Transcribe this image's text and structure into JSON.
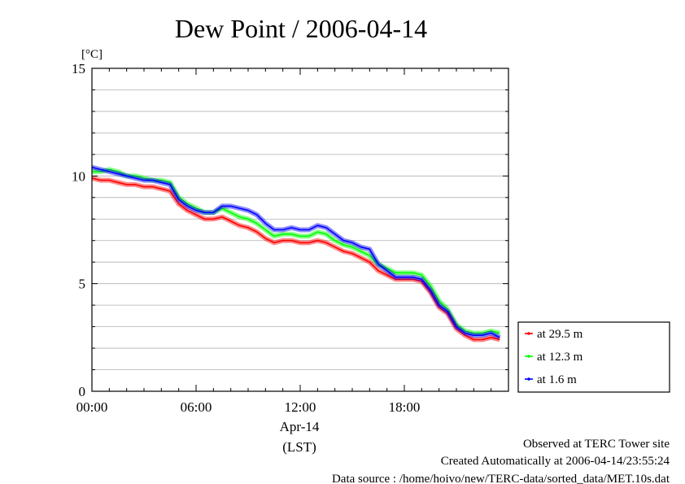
{
  "chart_data": {
    "type": "line",
    "title": "Dew Point / 2006-04-14",
    "ylabel": "[°C]",
    "ylim": [
      0,
      15
    ],
    "yticks": [
      "0",
      "5",
      "10",
      "15"
    ],
    "xlim": [
      0,
      24
    ],
    "xticks": [
      "00:00",
      "06:00",
      "12:00",
      "18:00"
    ],
    "xsublabel": "Apr-14",
    "xunit": "(LST)",
    "grid": true,
    "legend_position": "right-bottom",
    "x": [
      0,
      0.5,
      1,
      1.5,
      2,
      2.5,
      3,
      3.5,
      4,
      4.5,
      5,
      5.5,
      6,
      6.5,
      7,
      7.5,
      8,
      8.5,
      9,
      9.5,
      10,
      10.5,
      11,
      11.5,
      12,
      12.5,
      13,
      13.5,
      14,
      14.5,
      15,
      15.5,
      16,
      16.5,
      17,
      17.5,
      18,
      18.5,
      19,
      19.5,
      20,
      20.5,
      21,
      21.5,
      22,
      22.5,
      23,
      23.5
    ],
    "series": [
      {
        "name": "at 29.5 m",
        "color": "#ff0000",
        "values": [
          9.9,
          9.8,
          9.8,
          9.7,
          9.6,
          9.6,
          9.5,
          9.5,
          9.4,
          9.3,
          8.7,
          8.4,
          8.2,
          8.0,
          8.0,
          8.1,
          7.9,
          7.7,
          7.6,
          7.4,
          7.1,
          6.9,
          7.0,
          7.0,
          6.9,
          6.9,
          7.0,
          6.9,
          6.7,
          6.5,
          6.4,
          6.2,
          6.0,
          5.6,
          5.4,
          5.2,
          5.2,
          5.2,
          5.1,
          4.6,
          3.9,
          3.6,
          2.9,
          2.6,
          2.4,
          2.4,
          2.5,
          2.4
        ]
      },
      {
        "name": "at 12.3 m",
        "color": "#00ff00",
        "values": [
          10.2,
          10.2,
          10.3,
          10.2,
          10.0,
          10.0,
          9.9,
          9.8,
          9.8,
          9.7,
          9.0,
          8.7,
          8.5,
          8.3,
          8.3,
          8.5,
          8.3,
          8.1,
          8.0,
          7.8,
          7.5,
          7.2,
          7.3,
          7.3,
          7.2,
          7.2,
          7.4,
          7.3,
          7.0,
          6.8,
          6.7,
          6.5,
          6.3,
          5.9,
          5.7,
          5.5,
          5.5,
          5.5,
          5.4,
          4.9,
          4.2,
          3.8,
          3.1,
          2.8,
          2.7,
          2.7,
          2.8,
          2.7
        ]
      },
      {
        "name": "at 1.6 m",
        "color": "#0000ff",
        "values": [
          10.4,
          10.3,
          10.2,
          10.1,
          10.0,
          9.9,
          9.8,
          9.8,
          9.7,
          9.6,
          8.9,
          8.6,
          8.4,
          8.3,
          8.3,
          8.6,
          8.6,
          8.5,
          8.4,
          8.2,
          7.8,
          7.5,
          7.5,
          7.6,
          7.5,
          7.5,
          7.7,
          7.6,
          7.3,
          7.0,
          6.9,
          6.7,
          6.6,
          5.9,
          5.6,
          5.3,
          5.3,
          5.3,
          5.2,
          4.7,
          4.0,
          3.7,
          3.0,
          2.7,
          2.6,
          2.6,
          2.7,
          2.5
        ]
      }
    ]
  },
  "footer": {
    "line1": "Observed at TERC Tower site",
    "line2": "Created Automatically at 2006-04-14/23:55:24",
    "line3": "Data source : /home/hoivo/new/TERC-data/sorted_data/MET.10s.dat"
  }
}
